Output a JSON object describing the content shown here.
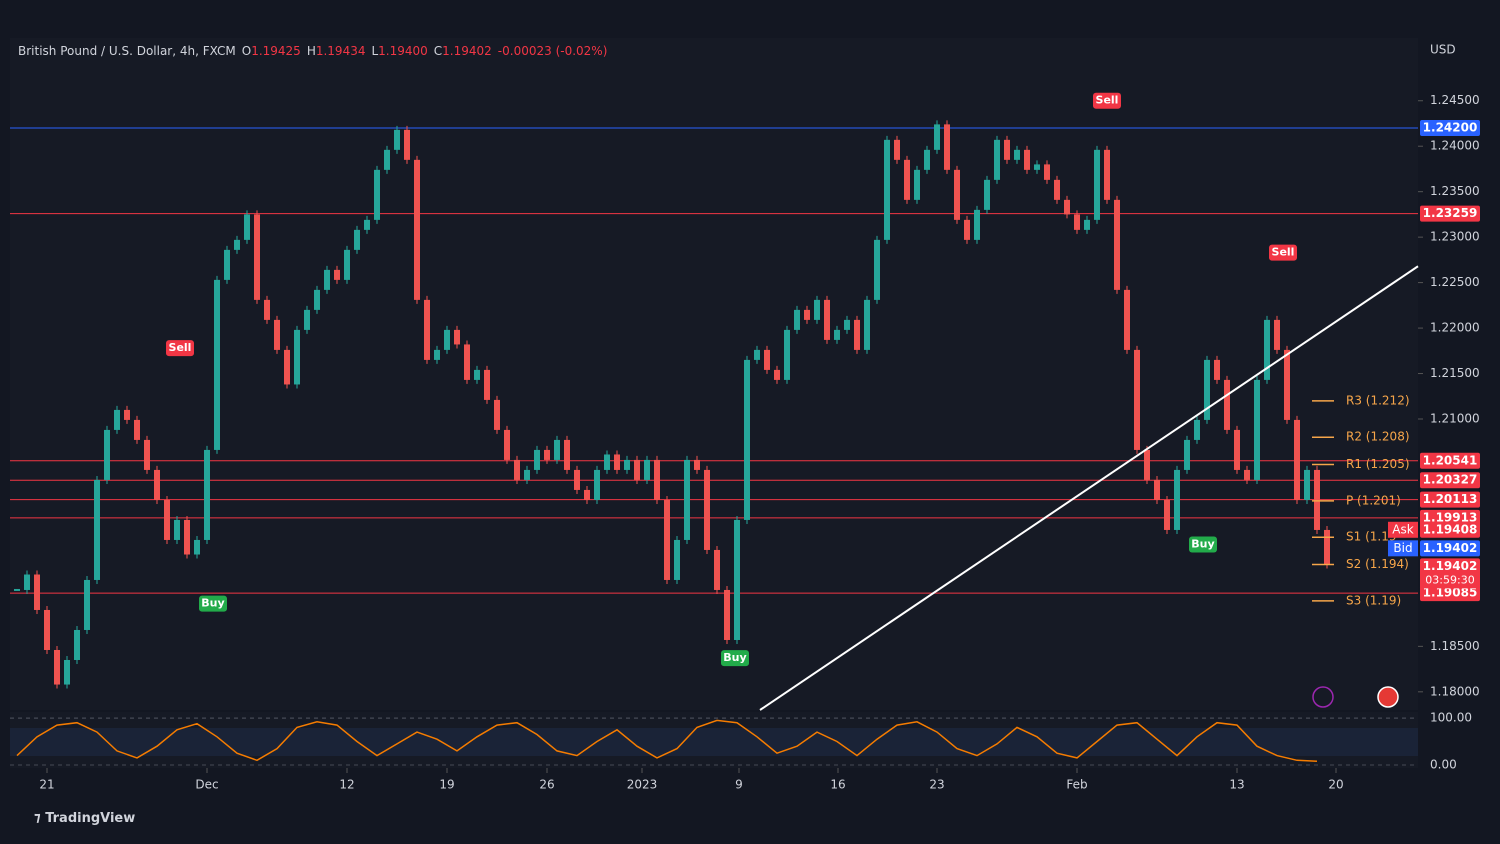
{
  "header": {
    "symbol": "British Pound / U.S. Dollar, 4h, FXCM",
    "ohlc": [
      {
        "key": "O",
        "value": "1.19425"
      },
      {
        "key": "H",
        "value": "1.19434"
      },
      {
        "key": "L",
        "value": "1.19400"
      },
      {
        "key": "C",
        "value": "1.19402"
      }
    ],
    "change": "-0.00023 (-0.02%)",
    "currency": "USD"
  },
  "price": {
    "xlim": [
      -1.85,
      68.55
    ],
    "ylim": [
      1.178,
      1.2519
    ],
    "x": [
      -1.5,
      -1,
      -0.5,
      0,
      0.5,
      1,
      1.5,
      2,
      2.5,
      3,
      3.5,
      4,
      4.5,
      5,
      5.5,
      6,
      6.5,
      7,
      7.5,
      8,
      8.5,
      9,
      9.5,
      10,
      10.5,
      11,
      11.5,
      12,
      12.5,
      13,
      13.5,
      14,
      14.5,
      15,
      15.5,
      16,
      16.5,
      17,
      17.5,
      18,
      18.5,
      19,
      19.5,
      20,
      20.5,
      21,
      21.5,
      22,
      22.5,
      23,
      23.5,
      24,
      24.5,
      25,
      25.5,
      26,
      26.5,
      27,
      27.5,
      28,
      28.5,
      29,
      29.5,
      30,
      30.5,
      31,
      31.5,
      32,
      32.5,
      33,
      33.5,
      34,
      34.5,
      35,
      35.5,
      36,
      36.5,
      37,
      37.5,
      38,
      38.5,
      39,
      39.5,
      40,
      40.5,
      41,
      41.5,
      42,
      42.5,
      43,
      43.5,
      44,
      44.5,
      45,
      45.5,
      46,
      46.5,
      47,
      47.5,
      48,
      48.5,
      49,
      49.5,
      50,
      50.5,
      51,
      51.5,
      52,
      52.5,
      53,
      53.5,
      54,
      54.5,
      55,
      55.5,
      56,
      56.5,
      57,
      57.5,
      58,
      58.5,
      59,
      59.5,
      60,
      60.5,
      61,
      61.5,
      62,
      62.5,
      63,
      63.5,
      64
    ],
    "values": [
      1.1912,
      1.1929,
      1.189,
      1.1846,
      1.1808,
      1.1835,
      1.1868,
      1.1923,
      1.2033,
      1.2088,
      1.211,
      1.2099,
      1.2077,
      1.2044,
      1.2011,
      1.1967,
      1.1989,
      1.1951,
      1.1967,
      1.2066,
      1.2253,
      1.2286,
      1.2297,
      1.2325,
      1.2231,
      1.2209,
      1.2176,
      1.2138,
      1.2198,
      1.222,
      1.2242,
      1.2264,
      1.2253,
      1.2286,
      1.2308,
      1.2319,
      1.2374,
      1.2396,
      1.2418,
      1.2385,
      1.2231,
      1.2165,
      1.2176,
      1.2198,
      1.2182,
      1.2143,
      1.2154,
      1.2121,
      1.2088,
      1.2055,
      1.2033,
      1.2044,
      1.2066,
      1.2055,
      1.2077,
      1.2044,
      1.2022,
      1.2011,
      1.2044,
      1.2061,
      1.2044,
      1.2055,
      1.2033,
      1.2055,
      1.2011,
      1.1923,
      1.1967,
      1.2055,
      1.2044,
      1.1956,
      1.1912,
      1.1857,
      1.1989,
      1.2165,
      1.2176,
      1.2154,
      1.2143,
      1.2198,
      1.222,
      1.2209,
      1.2231,
      1.2187,
      1.2198,
      1.2209,
      1.2176,
      1.2231,
      1.2297,
      1.2407,
      1.2385,
      1.2341,
      1.2374,
      1.2396,
      1.2424,
      1.2374,
      1.2319,
      1.2297,
      1.233,
      1.2363,
      1.2407,
      1.2385,
      1.2396,
      1.2374,
      1.238,
      1.2363,
      1.2341,
      1.2325,
      1.2308,
      1.2319,
      1.2396,
      1.2341,
      1.2242,
      1.2176,
      1.2066,
      1.2033,
      1.2011,
      1.1978,
      1.2044,
      1.2077,
      1.2099,
      1.2165,
      1.2143,
      1.2088,
      1.2044,
      1.2033,
      1.2143,
      1.2209,
      1.2176,
      1.2099,
      1.2011,
      1.2044,
      1.1978,
      1.194
    ],
    "yticks": [
      {
        "value": 1.245,
        "label": "1.24500"
      },
      {
        "value": 1.24,
        "label": "1.24000"
      },
      {
        "value": 1.235,
        "label": "1.23500"
      },
      {
        "value": 1.23,
        "label": "1.23000"
      },
      {
        "value": 1.225,
        "label": "1.22500"
      },
      {
        "value": 1.22,
        "label": "1.22000"
      },
      {
        "value": 1.215,
        "label": "1.21500"
      },
      {
        "value": 1.21,
        "label": "1.21000"
      },
      {
        "value": 1.185,
        "label": "1.18500"
      },
      {
        "value": 1.18,
        "label": "1.18000"
      }
    ],
    "xticks": [
      {
        "value": 0,
        "label": "21"
      },
      {
        "value": 8,
        "label": "Dec"
      },
      {
        "value": 15,
        "label": "12"
      },
      {
        "value": 20,
        "label": "19"
      },
      {
        "value": 25,
        "label": "26"
      },
      {
        "value": 29.75,
        "label": "2023"
      },
      {
        "value": 34.6,
        "label": "9"
      },
      {
        "value": 39.55,
        "label": "16"
      },
      {
        "value": 44.5,
        "label": "23"
      },
      {
        "value": 51.5,
        "label": "Feb"
      },
      {
        "value": 59.5,
        "label": "13"
      },
      {
        "value": 64.45,
        "label": "20"
      }
    ],
    "levels": [
      {
        "value": 1.242,
        "label": "1.24200",
        "color": "#2962ff"
      },
      {
        "value": 1.23259,
        "label": "1.23259",
        "color": "#f23645"
      },
      {
        "value": 1.20541,
        "label": "1.20541",
        "color": "#f23645"
      },
      {
        "value": 1.20327,
        "label": "1.20327",
        "color": "#f23645"
      },
      {
        "value": 1.20113,
        "label": "1.20113",
        "color": "#f23645"
      },
      {
        "value": 1.19913,
        "label": "1.19913",
        "color": "#f23645"
      },
      {
        "value": 1.19085,
        "label": "1.19085",
        "color": "#f23645"
      }
    ],
    "ask": {
      "tag": "Ask",
      "value": 1.19408,
      "label": "1.19408",
      "color": "#f23645"
    },
    "bid": {
      "tag": "Bid",
      "value": 1.19402,
      "label": "1.19402",
      "color": "#2962ff"
    },
    "last": {
      "value": 1.19402,
      "label": "1.19402",
      "countdown": "03:59:30",
      "color": "#f23645"
    },
    "pivots": [
      {
        "label": "R3 (1.212)",
        "value": 1.212
      },
      {
        "label": "R2 (1.208)",
        "value": 1.208
      },
      {
        "label": "R1 (1.205)",
        "value": 1.205
      },
      {
        "label": "P (1.201)",
        "value": 1.201
      },
      {
        "label": "S1 (1.19",
        "value": 1.197
      },
      {
        "label": "S2 (1.194)",
        "value": 1.194
      },
      {
        "label": "S3 (1.19)",
        "value": 1.19
      }
    ],
    "signals": [
      {
        "label": "Sell",
        "x": 6.65,
        "y": 1.2178,
        "color": "#f23645"
      },
      {
        "label": "Buy",
        "x": 8.3,
        "y": 1.1897,
        "color": "#22ab4a"
      },
      {
        "label": "Buy",
        "x": 34.4,
        "y": 1.1837,
        "color": "#22ab4a"
      },
      {
        "label": "Sell",
        "x": 53,
        "y": 1.245,
        "color": "#f23645"
      },
      {
        "label": "Buy",
        "x": 57.8,
        "y": 1.1962,
        "color": "#22ab4a"
      },
      {
        "label": "Sell",
        "x": 61.8,
        "y": 1.2283,
        "color": "#f23645"
      }
    ],
    "trendline": {
      "x": [
        35.65,
        68.55
      ],
      "y": [
        1.178,
        1.2268
      ]
    }
  },
  "oscillator": {
    "ylim": [
      -6.4,
      112.8
    ],
    "yticks": [
      {
        "value": 100,
        "label": "100.00"
      },
      {
        "value": 0,
        "label": "0.00"
      }
    ],
    "x": [
      -1.5,
      -0.5,
      0.5,
      1.5,
      2.5,
      3.5,
      4.5,
      5.5,
      6.5,
      7.5,
      8.5,
      9.5,
      10.5,
      11.5,
      12.5,
      13.5,
      14.5,
      15.5,
      16.5,
      17.5,
      18.5,
      19.5,
      20.5,
      21.5,
      22.5,
      23.5,
      24.5,
      25.5,
      26.5,
      27.5,
      28.5,
      29.5,
      30.5,
      31.5,
      32.5,
      33.5,
      34.5,
      35.5,
      36.5,
      37.5,
      38.5,
      39.5,
      40.5,
      41.5,
      42.5,
      43.5,
      44.5,
      45.5,
      46.5,
      47.5,
      48.5,
      49.5,
      50.5,
      51.5,
      52.5,
      53.5,
      54.5,
      55.5,
      56.5,
      57.5,
      58.5,
      59.5,
      60.5,
      61.5,
      62.5,
      63.5
    ],
    "values": [
      20,
      60,
      85,
      90,
      70,
      30,
      15,
      40,
      75,
      88,
      60,
      25,
      10,
      35,
      80,
      92,
      85,
      50,
      20,
      45,
      70,
      55,
      30,
      60,
      85,
      90,
      65,
      30,
      20,
      50,
      75,
      40,
      15,
      35,
      80,
      95,
      90,
      60,
      25,
      40,
      70,
      50,
      20,
      55,
      85,
      92,
      70,
      35,
      20,
      45,
      80,
      60,
      25,
      15,
      50,
      85,
      90,
      55,
      20,
      60,
      90,
      85,
      40,
      20,
      10,
      8
    ]
  },
  "footer": {
    "brand": "TradingView"
  }
}
